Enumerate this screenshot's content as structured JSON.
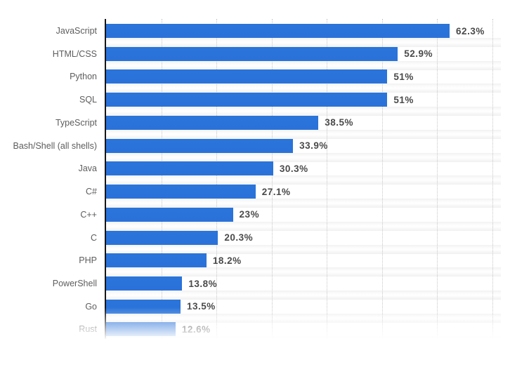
{
  "chart_data": {
    "type": "bar",
    "orientation": "horizontal",
    "title": "",
    "xlabel": "",
    "ylabel": "",
    "categories": [
      "JavaScript",
      "HTML/CSS",
      "Python",
      "SQL",
      "TypeScript",
      "Bash/Shell (all shells)",
      "Java",
      "C#",
      "C++",
      "C",
      "PHP",
      "PowerShell",
      "Go",
      "Rust"
    ],
    "values": [
      62.3,
      52.9,
      51,
      51,
      38.5,
      33.9,
      30.3,
      27.1,
      23,
      20.3,
      18.2,
      13.8,
      13.5,
      12.6
    ],
    "value_labels": [
      "62.3%",
      "52.9%",
      "51%",
      "51%",
      "38.5%",
      "33.9%",
      "30.3%",
      "27.1%",
      "23%",
      "20.3%",
      "18.2%",
      "13.8%",
      "13.5%",
      "12.6%"
    ],
    "xlim": [
      0,
      70
    ],
    "gridline_step": 10,
    "grid": true,
    "legend": "none",
    "last_row_faded_out": true
  },
  "colors": {
    "bar": "#2a74da",
    "axis": "#161616",
    "gridline": "#c7c7c7",
    "category_label": "#5d5d5d",
    "value_label": "#4a4a4a",
    "background": "#ffffff"
  }
}
